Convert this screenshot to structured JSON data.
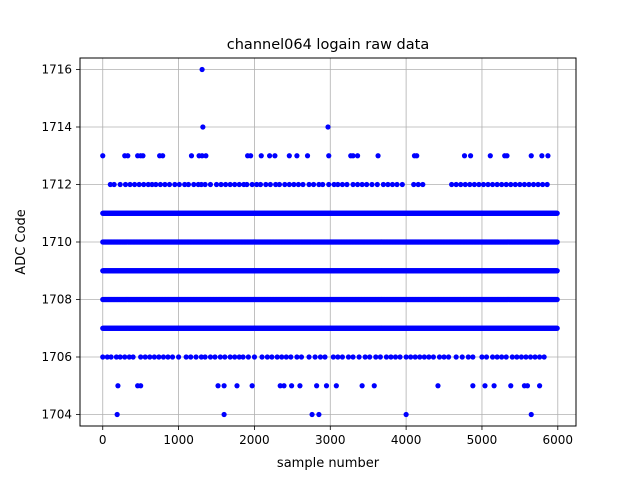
{
  "chart_data": {
    "type": "scatter",
    "title": "channel064 logain raw data",
    "xlabel": "sample number",
    "ylabel": "ADC Code",
    "xlim": [
      -300,
      6240
    ],
    "ylim": [
      1703.6,
      1716.4
    ],
    "xticks": [
      0,
      1000,
      2000,
      3000,
      4000,
      5000,
      6000
    ],
    "yticks": [
      1704,
      1706,
      1708,
      1710,
      1712,
      1714,
      1716
    ],
    "grid": true,
    "marker_color": "#0000ff",
    "sample_count": 6000,
    "dense_levels": [
      1707,
      1708,
      1709,
      1710,
      1711
    ],
    "sparse_levels": {
      "1712": [
        100,
        150,
        230,
        300,
        360,
        420,
        480,
        540,
        600,
        650,
        700,
        760,
        820,
        880,
        950,
        1010,
        1080,
        1130,
        1200,
        1260,
        1300,
        1350,
        1420,
        1500,
        1560,
        1620,
        1680,
        1740,
        1800,
        1860,
        1900,
        1970,
        2030,
        2080,
        2150,
        2210,
        2280,
        2330,
        2400,
        2460,
        2520,
        2580,
        2640,
        2720,
        2780,
        2850,
        2900,
        2980,
        3050,
        3100,
        3160,
        3220,
        3300,
        3360,
        3420,
        3480,
        3550,
        3620,
        3700,
        3760,
        3820,
        3880,
        3950,
        4100,
        4160,
        4220,
        4600,
        4660,
        4720,
        4780,
        4840,
        4900,
        4960,
        5020,
        5080,
        5140,
        5200,
        5260,
        5320,
        5380,
        5440,
        5500,
        5560,
        5620,
        5680,
        5740,
        5800,
        5860
      ],
      "1706": [
        0,
        60,
        110,
        180,
        230,
        290,
        350,
        400,
        500,
        560,
        620,
        680,
        740,
        800,
        860,
        920,
        1000,
        1100,
        1160,
        1230,
        1300,
        1350,
        1420,
        1480,
        1550,
        1610,
        1680,
        1740,
        1800,
        1850,
        1920,
        2000,
        2100,
        2170,
        2230,
        2300,
        2360,
        2420,
        2480,
        2560,
        2620,
        2720,
        2800,
        2870,
        2930,
        3040,
        3100,
        3160,
        3240,
        3300,
        3380,
        3460,
        3520,
        3600,
        3660,
        3740,
        3800,
        3860,
        3920,
        4000,
        4060,
        4120,
        4180,
        4240,
        4300,
        4360,
        4440,
        4500,
        4560,
        4660,
        4740,
        4820,
        4880,
        5000,
        5060,
        5140,
        5200,
        5260,
        5320,
        5400,
        5460,
        5520,
        5580,
        5640,
        5700,
        5760,
        5820
      ],
      "1713": [
        0,
        290,
        330,
        460,
        500,
        530,
        750,
        790,
        1170,
        1270,
        1310,
        1360,
        1910,
        1950,
        2090,
        2200,
        2270,
        2460,
        2560,
        2700,
        2980,
        3270,
        3300,
        3360,
        3630,
        4110,
        4140,
        4770,
        4850,
        5110,
        5300,
        5330,
        5650,
        5790,
        5870
      ],
      "1705": [
        200,
        460,
        500,
        1520,
        1600,
        1770,
        1970,
        2340,
        2390,
        2490,
        2600,
        2820,
        2950,
        3080,
        3420,
        3580,
        4420,
        4880,
        5040,
        5160,
        5380,
        5560,
        5600,
        5760
      ],
      "1714": [
        1320,
        2970
      ],
      "1704": [
        190,
        1600,
        2760,
        2850,
        4000,
        5650
      ],
      "1716": [
        1310
      ]
    }
  }
}
